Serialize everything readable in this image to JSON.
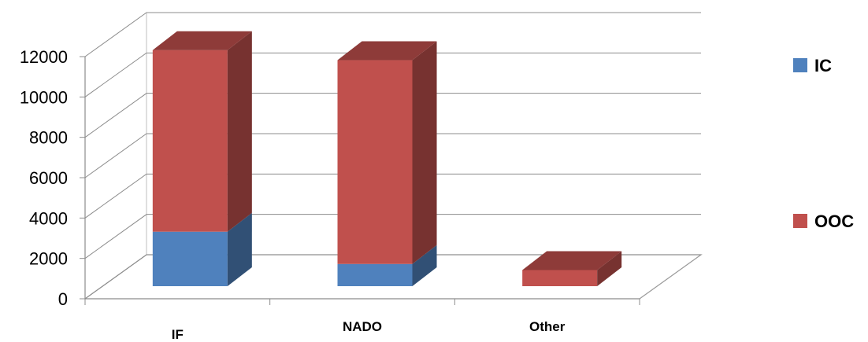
{
  "chart_data": {
    "type": "bar",
    "stacked": true,
    "three_d": true,
    "categories": [
      "IF",
      "NADO",
      "Other"
    ],
    "series": [
      {
        "name": "IC",
        "values": [
          2700,
          1100,
          0
        ],
        "color": "#4F81BD"
      },
      {
        "name": "OOC",
        "values": [
          9000,
          10100,
          800
        ],
        "color": "#C0504D"
      }
    ],
    "ylim": [
      0,
      12000
    ],
    "yticks": [
      0,
      2000,
      4000,
      6000,
      8000,
      10000,
      12000
    ],
    "grid": true,
    "legend_position": "right"
  }
}
